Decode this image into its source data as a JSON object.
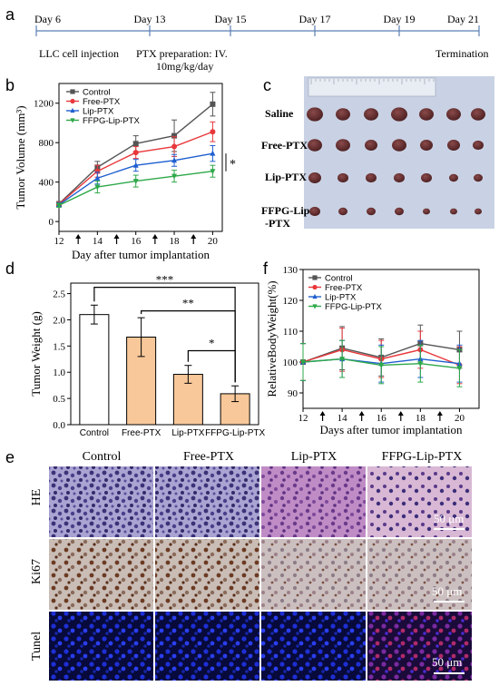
{
  "panel_labels": {
    "a": "a",
    "b": "b",
    "c": "c",
    "d": "d",
    "f": "f",
    "e": "e"
  },
  "timeline": {
    "days": [
      "Day 6",
      "Day 13",
      "Day 15",
      "Day 17",
      "Day 19",
      "Day 21"
    ],
    "event_injection": "LLC  cell injection",
    "event_prep_line1": "PTX preparation:  IV.",
    "event_prep_line2": "10mg/kg/day",
    "event_termination": "Termination"
  },
  "panel_c": {
    "rows": [
      "Saline",
      "Free-PTX",
      "Lip-PTX",
      "FFPG-Lip",
      "-PTX"
    ],
    "photo_colors": {
      "background": "#c9d2e4",
      "tumor": "#5e2a2c",
      "ruler": "#e8ecf3"
    }
  },
  "panel_e": {
    "columns": [
      "Control",
      "Free-PTX",
      "Lip-PTX",
      "FFPG-Lip-PTX"
    ],
    "rows": [
      "HE",
      "Ki67",
      "Tunel"
    ],
    "scale": "50 μm"
  },
  "chart_data": [
    {
      "type": "line",
      "panel": "b",
      "x": [
        12,
        14,
        16,
        18,
        20
      ],
      "xticks": [
        "12",
        "14",
        "16",
        "18",
        "20"
      ],
      "yticks": [
        "0",
        "400",
        "800",
        "1200"
      ],
      "xlabel": "Day after tumor implantation",
      "ylabel": "Tumor Volume (mm³)",
      "xlim": [
        12,
        20.5
      ],
      "ylim": [
        -100,
        1400
      ],
      "arrows_at": [
        13,
        15,
        17,
        19
      ],
      "significance": "*",
      "legend_position": "top-left",
      "series": [
        {
          "name": "Control",
          "color": "#555555",
          "marker": "square",
          "values": [
            180,
            550,
            790,
            870,
            1190
          ],
          "err": [
            20,
            60,
            80,
            160,
            120
          ]
        },
        {
          "name": "Free-PTX",
          "color": "#e8383c",
          "marker": "circle",
          "values": [
            175,
            510,
            700,
            760,
            910
          ],
          "err": [
            20,
            60,
            60,
            100,
            100
          ]
        },
        {
          "name": "Lip-PTX",
          "color": "#1f5fd0",
          "marker": "triangle",
          "values": [
            170,
            440,
            570,
            620,
            690
          ],
          "err": [
            20,
            60,
            60,
            60,
            80
          ]
        },
        {
          "name": "FFPG-Lip-PTX",
          "color": "#2ea84a",
          "marker": "triangle-down",
          "values": [
            165,
            350,
            410,
            460,
            510
          ],
          "err": [
            20,
            60,
            60,
            60,
            60
          ]
        }
      ]
    },
    {
      "type": "bar",
      "panel": "d",
      "categories": [
        "Control",
        "Free-PTX",
        "Lip-PTX",
        "FFPG-Lip-PTX"
      ],
      "values": [
        2.1,
        1.67,
        0.96,
        0.59
      ],
      "err": [
        0.18,
        0.37,
        0.17,
        0.15
      ],
      "colors": [
        "#ffffff",
        "#f8c89a",
        "#f8c89a",
        "#f8c89a"
      ],
      "ylabel": "Tumor Weight (g)",
      "yticks": [
        "0.0",
        "0.5",
        "1.0",
        "1.5",
        "2.0",
        "2.5"
      ],
      "ylim": [
        0,
        2.7
      ],
      "significance": [
        {
          "from": 0,
          "to": 3,
          "label": "***"
        },
        {
          "from": 1,
          "to": 3,
          "label": "**"
        },
        {
          "from": 2,
          "to": 3,
          "label": "*"
        }
      ]
    },
    {
      "type": "line",
      "panel": "f",
      "x": [
        12,
        14,
        16,
        18,
        20
      ],
      "xticks": [
        "12",
        "14",
        "16",
        "18",
        "20"
      ],
      "yticks": [
        "90",
        "100",
        "110",
        "120",
        "130"
      ],
      "xlabel": "Days after tumor implantation",
      "ylabel": "RelativeBodyWeight(%)",
      "xlim": [
        12,
        21
      ],
      "ylim": [
        85,
        130
      ],
      "arrows_at": [
        13,
        15,
        17,
        19
      ],
      "legend_position": "top-left",
      "series": [
        {
          "name": "Control",
          "color": "#555555",
          "marker": "square",
          "values": [
            100,
            104.5,
            101.5,
            106,
            104
          ],
          "err": [
            6,
            7,
            6,
            6,
            6
          ]
        },
        {
          "name": "Free-PTX",
          "color": "#e8383c",
          "marker": "circle",
          "values": [
            100,
            104,
            101,
            104,
            99
          ],
          "err": [
            6,
            7,
            6,
            6,
            6
          ]
        },
        {
          "name": "Lip-PTX",
          "color": "#1f5fd0",
          "marker": "triangle",
          "values": [
            100,
            101,
            99.5,
            101,
            99.5
          ],
          "err": [
            6,
            6,
            6,
            6,
            6
          ]
        },
        {
          "name": "FFPG-Lip-PTX",
          "color": "#2ea84a",
          "marker": "triangle-down",
          "values": [
            100,
            101,
            99,
            99.5,
            98
          ],
          "err": [
            6,
            6,
            6,
            6,
            6
          ]
        }
      ]
    }
  ]
}
